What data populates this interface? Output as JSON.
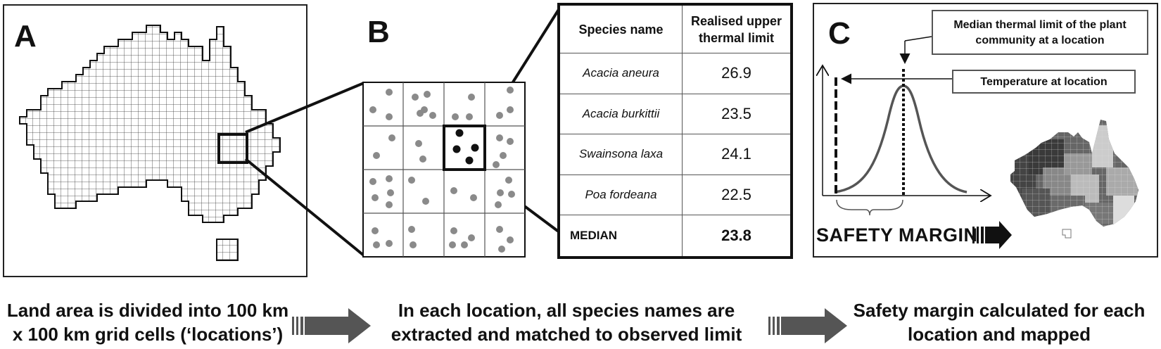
{
  "panels": {
    "a": {
      "label": "A"
    },
    "b": {
      "label": "B"
    },
    "c": {
      "label": "C"
    }
  },
  "table": {
    "header": {
      "species": "Species name",
      "limit": "Realised upper thermal limit"
    },
    "rows": [
      {
        "species": "Acacia aneura",
        "limit": "26.9"
      },
      {
        "species": "Acacia burkittii",
        "limit": "23.5"
      },
      {
        "species": "Swainsona laxa",
        "limit": "24.1"
      },
      {
        "species": "Poa fordeana",
        "limit": "22.5"
      }
    ],
    "median": {
      "label": "MEDIAN",
      "value": "23.8"
    }
  },
  "panel_c": {
    "callout_median": "Median thermal limit of the plant community at a location",
    "callout_temperature": "Temperature at location",
    "safety_margin": "SAFETY MARGIN"
  },
  "captions": {
    "step1": "Land area is divided into 100 km x 100 km grid cells (‘locations’)",
    "step2": "In each location, all species names are extracted and matched to observed limit",
    "step3": "Safety margin calculated for each location and mapped"
  },
  "colors": {
    "dot_grey": "#8a8a8a",
    "dot_black": "#111111",
    "curve": "#555555",
    "arrow": "#555555"
  }
}
